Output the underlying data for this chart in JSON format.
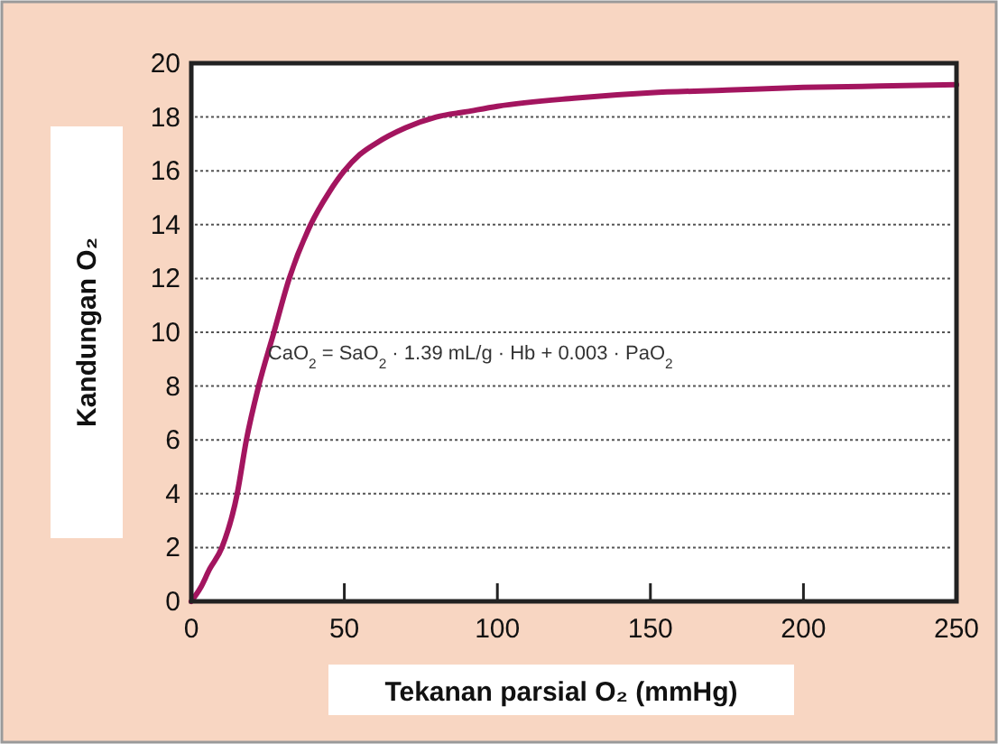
{
  "chart_data": {
    "type": "line",
    "xlabel": "Tekanan parsial O₂ (mmHg)",
    "ylabel": "Kandungan O₂",
    "annotations": [
      "CaO$_{2}$ = SaO$_{2}$ · 1.39 mL/g · Hb + 0.003 · PaO$_{2}$"
    ],
    "series": [
      {
        "color": "#a3155f",
        "x": [
          0,
          3,
          6,
          10,
          15,
          18,
          22,
          27,
          32,
          39,
          45,
          50,
          55,
          60,
          70,
          80,
          90,
          100,
          125,
          150,
          175,
          200,
          225,
          250
        ],
        "values": [
          0,
          0.5,
          1.2,
          2,
          4,
          6,
          8,
          10,
          12,
          14,
          15.2,
          16,
          16.6,
          17,
          17.6,
          18,
          18.2,
          18.4,
          18.7,
          18.9,
          19,
          19.1,
          19.15,
          19.2
        ]
      }
    ],
    "xlim": [
      0,
      250
    ],
    "xticks": [
      0,
      50,
      100,
      150,
      200,
      250
    ],
    "ylim": [
      0,
      20
    ],
    "yticks": [
      0,
      2,
      4,
      6,
      8,
      10,
      12,
      14,
      16,
      18,
      20
    ],
    "grid": "y",
    "marker": "none",
    "line_style": "solid"
  }
}
